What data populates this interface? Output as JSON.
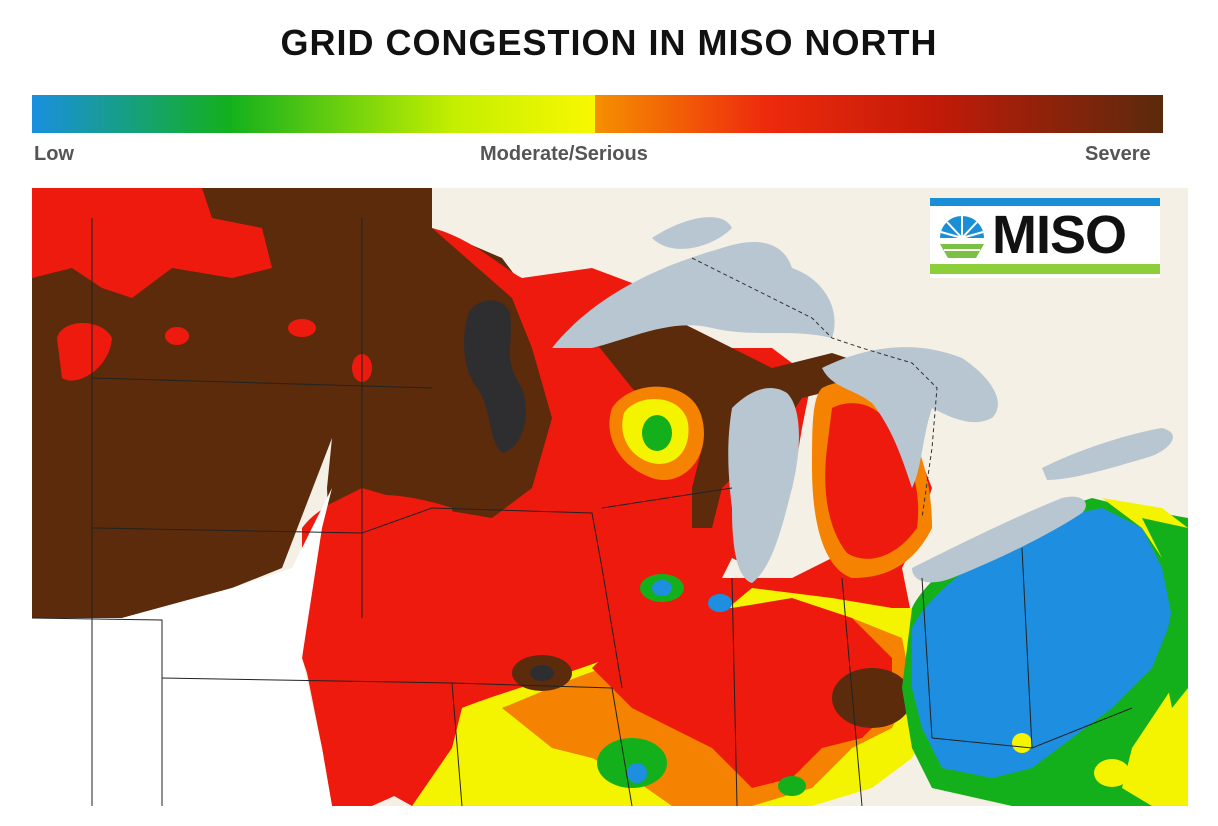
{
  "title": "GRID CONGESTION IN MISO NORTH",
  "scale": {
    "labels": {
      "low": "Low",
      "moderate": "Moderate/Serious",
      "severe": "Severe"
    },
    "colors": [
      "#1a8fe0",
      "#13b01d",
      "#f5f200",
      "#f58a00",
      "#e51a0f",
      "#5a2a0c"
    ]
  },
  "logo": {
    "text": "MISO"
  },
  "legend_colors": {
    "low_blue": "#1e8ee0",
    "low_green": "#14b01c",
    "moderate_yellow": "#f4f400",
    "serious_orange": "#f58200",
    "high_red": "#ee1a0e",
    "severe_brown": "#5b2b0b",
    "extreme_dark": "#2e2e30",
    "water": "#b7c6d1",
    "land_outside": "#f4f0e6"
  }
}
